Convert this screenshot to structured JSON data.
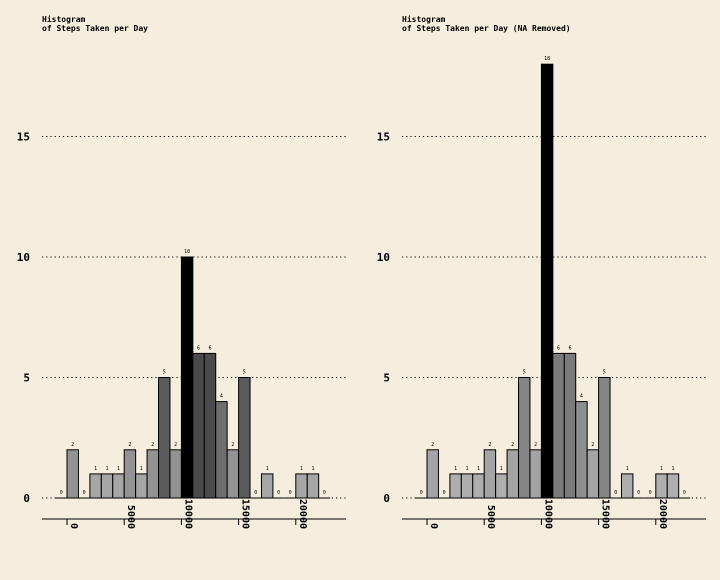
{
  "chart_data": [
    {
      "type": "bar",
      "title": "Histogram",
      "subtitle": "of Steps Taken per Day",
      "bin_width": 1000,
      "bin_start": -1000,
      "values": [
        0,
        2,
        0,
        1,
        1,
        1,
        2,
        1,
        2,
        5,
        2,
        10,
        6,
        6,
        4,
        2,
        5,
        0,
        1,
        0,
        0,
        1,
        1,
        0
      ],
      "ylim": [
        0,
        19
      ],
      "yticks": [
        "0",
        "5",
        "10",
        "15"
      ],
      "xticks": [
        "0",
        "5000",
        "10000",
        "15000",
        "20000"
      ],
      "grid": "horizontal dotted"
    },
    {
      "type": "bar",
      "title": "Histogram",
      "subtitle": "of Steps Taken per Day (NA Removed)",
      "bin_width": 1000,
      "bin_start": -1000,
      "values": [
        0,
        2,
        0,
        1,
        1,
        1,
        2,
        1,
        2,
        5,
        2,
        18,
        6,
        6,
        4,
        2,
        5,
        0,
        1,
        0,
        0,
        1,
        1,
        0
      ],
      "ylim": [
        0,
        19
      ],
      "yticks": [
        "0",
        "5",
        "10",
        "15"
      ],
      "xticks": [
        "0",
        "5000",
        "10000",
        "15000",
        "20000"
      ],
      "grid": "horizontal dotted"
    }
  ],
  "colors": {
    "background": "#f5eddd",
    "grid": "#000000",
    "ramp_low": "#b8b8b8",
    "ramp_high": "#000000"
  }
}
